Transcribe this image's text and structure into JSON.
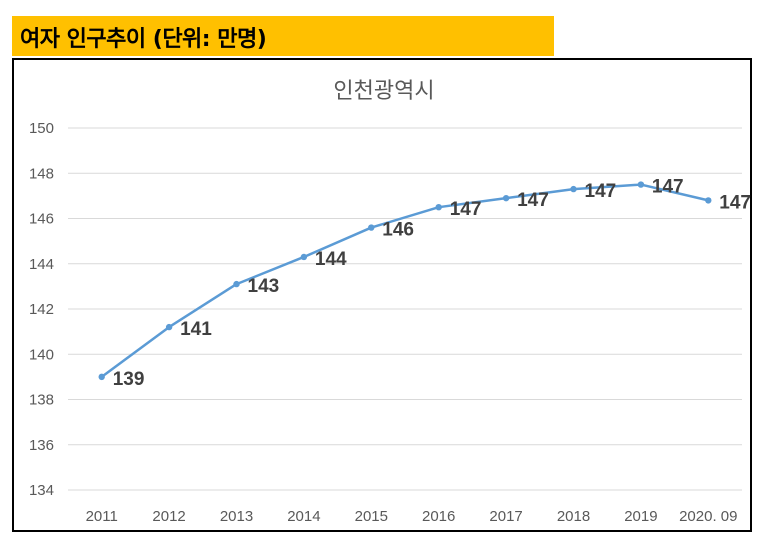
{
  "header": {
    "title": "여자 인구추이 (단위: 만명)"
  },
  "colors": {
    "header_bg": "#ffc000",
    "line": "#5b9bd5",
    "grid": "#d9d9d9",
    "text": "#595959",
    "label": "#404040"
  },
  "chart_data": {
    "type": "line",
    "title": "인천광역시",
    "xlabel": "",
    "ylabel": "",
    "categories": [
      "2011",
      "2012",
      "2013",
      "2014",
      "2015",
      "2016",
      "2017",
      "2018",
      "2019",
      "2020. 09"
    ],
    "series": [
      {
        "name": "인천광역시",
        "values": [
          139.0,
          141.2,
          143.1,
          144.3,
          145.6,
          146.5,
          146.9,
          147.3,
          147.5,
          146.8
        ],
        "labels": [
          "139",
          "141",
          "143",
          "144",
          "146",
          "147",
          "147",
          "147",
          "147",
          "147"
        ]
      }
    ],
    "ylim": [
      134,
      150
    ],
    "yticks": [
      134,
      136,
      138,
      140,
      142,
      144,
      146,
      148,
      150
    ],
    "grid": true,
    "legend": "none"
  }
}
